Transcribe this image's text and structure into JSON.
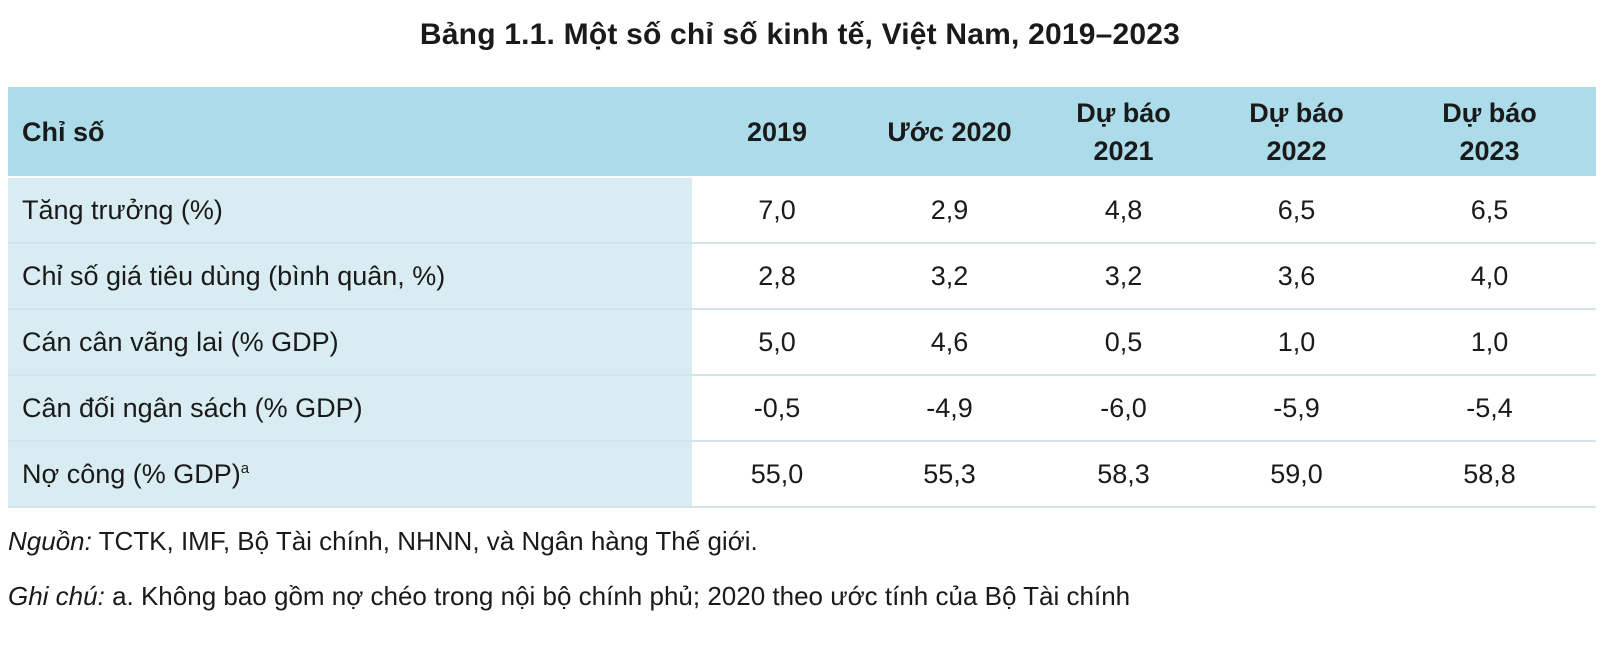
{
  "title": "Bảng 1.1. Một số chỉ số kinh tế, Việt Nam, 2019–2023",
  "table": {
    "headers": [
      {
        "line1": "Chỉ số",
        "line2": ""
      },
      {
        "line1": "2019",
        "line2": ""
      },
      {
        "line1": "Ước 2020",
        "line2": ""
      },
      {
        "line1": "Dự báo",
        "line2": "2021"
      },
      {
        "line1": "Dự báo",
        "line2": "2022"
      },
      {
        "line1": "Dự báo",
        "line2": "2023"
      }
    ],
    "rows": [
      {
        "label": "Tăng trưởng (%)",
        "note": "",
        "values": [
          "7,0",
          "2,9",
          "4,8",
          "6,5",
          "6,5"
        ]
      },
      {
        "label": "Chỉ số giá tiêu dùng (bình quân, %)",
        "note": "",
        "values": [
          "2,8",
          "3,2",
          "3,2",
          "3,6",
          "4,0"
        ]
      },
      {
        "label": "Cán cân vãng lai (% GDP)",
        "note": "",
        "values": [
          "5,0",
          "4,6",
          "0,5",
          "1,0",
          "1,0"
        ]
      },
      {
        "label": "Cân đối ngân sách (% GDP)",
        "note": "",
        "values": [
          "-0,5",
          "-4,9",
          "-6,0",
          "-5,9",
          "-5,4"
        ]
      },
      {
        "label": "Nợ công (% GDP)",
        "note": "a",
        "values": [
          "55,0",
          "55,3",
          "58,3",
          "59,0",
          "58,8"
        ]
      }
    ]
  },
  "source": {
    "lead": "Nguồn:",
    "text": "TCTK, IMF, Bộ Tài chính, NHNN, và Ngân hàng Thế giới."
  },
  "remark": {
    "lead": "Ghi chú:",
    "text": "a. Không bao gồm nợ chéo trong nội bộ chính phủ; 2020 theo ước tính của Bộ Tài chính"
  }
}
